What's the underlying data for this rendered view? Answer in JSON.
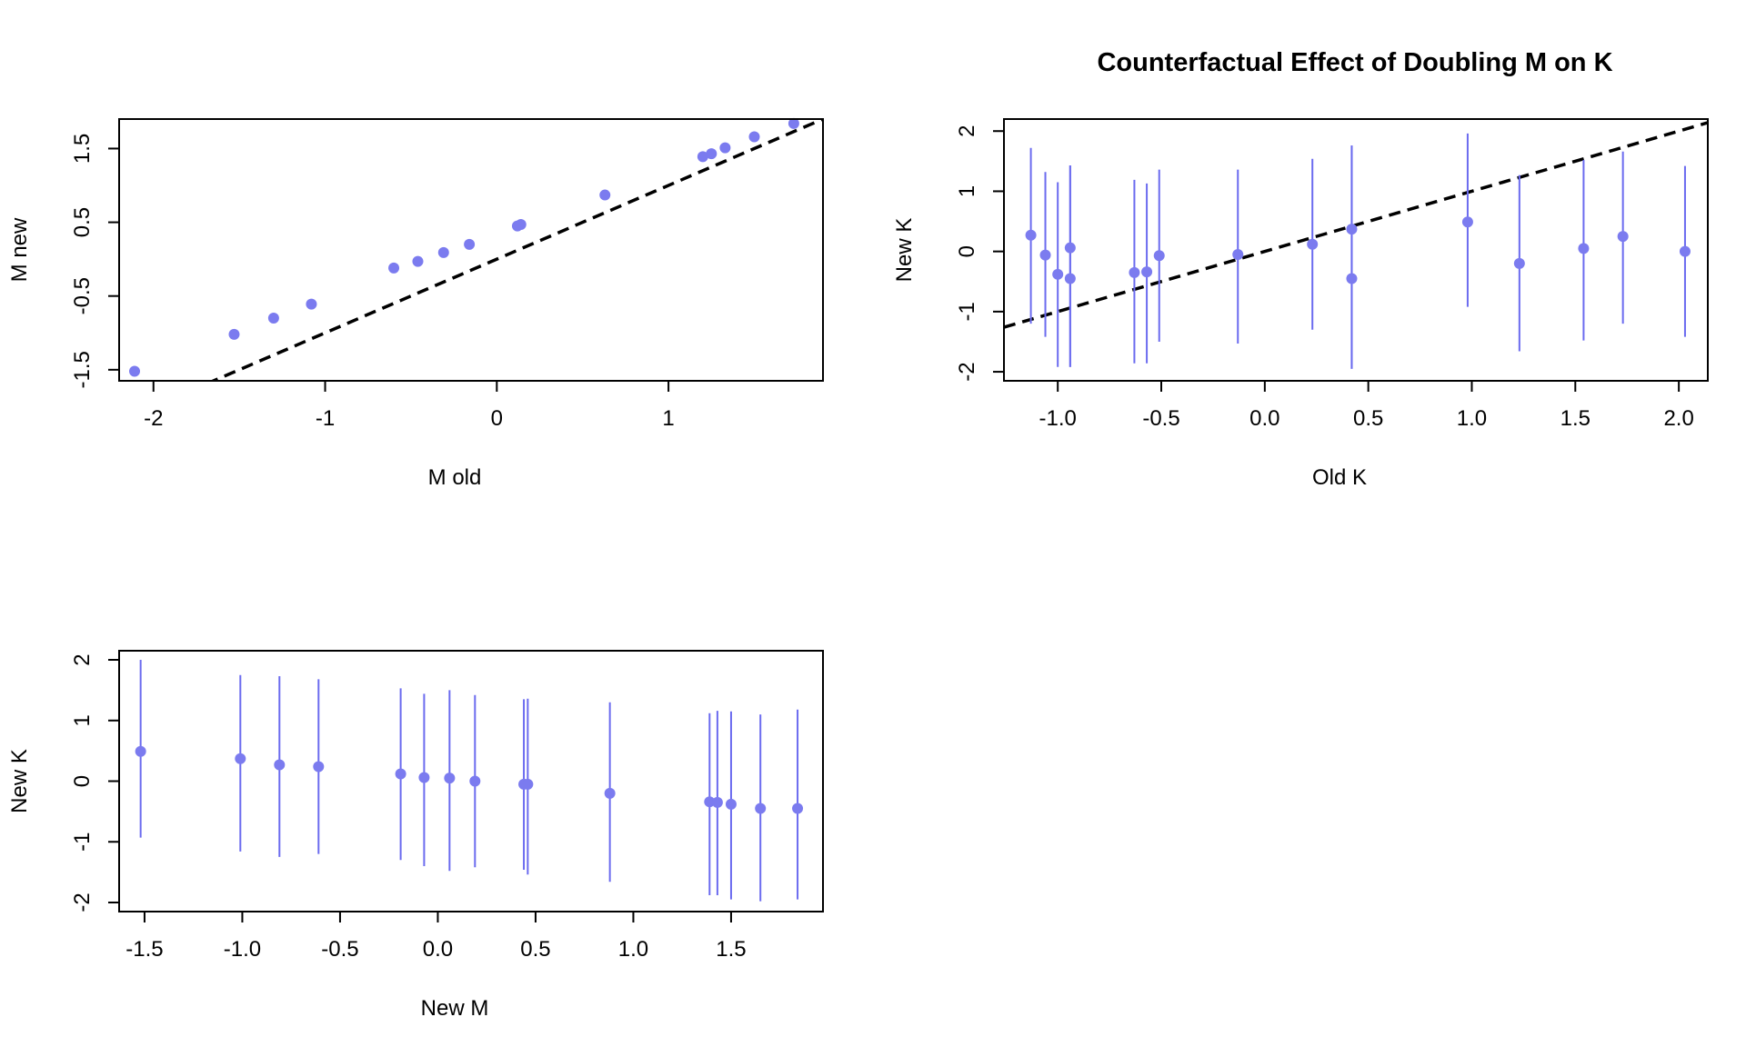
{
  "title": "Counterfactual Effect of Doubling M on K",
  "colors": {
    "points": "#7b7bef",
    "bars": "#6b6bef",
    "line": "#000000",
    "frame": "#000000"
  },
  "chart_data": [
    {
      "type": "scatter",
      "xlabel": "M old",
      "ylabel": "M new",
      "xlim": [
        -2.2,
        1.9
      ],
      "ylim": [
        -1.65,
        1.9
      ],
      "xticks": [
        -2,
        -1,
        0,
        1
      ],
      "xtick_labels": [
        "-2",
        "-1",
        "0",
        "1"
      ],
      "yticks": [
        -1.5,
        -0.5,
        0.5,
        1.5
      ],
      "ytick_labels": [
        "-1.5",
        "-0.5",
        "0.5",
        "1.5"
      ],
      "reference_line": {
        "style": "dashed",
        "intercept": 0,
        "slope": 1
      },
      "x": [
        -2.11,
        -1.53,
        -1.3,
        -1.08,
        -0.6,
        -0.46,
        -0.31,
        -0.16,
        0.12,
        0.14,
        0.63,
        1.2,
        1.25,
        1.33,
        1.5,
        1.73
      ],
      "y": [
        -1.52,
        -1.02,
        -0.8,
        -0.61,
        -0.12,
        -0.03,
        0.09,
        0.2,
        0.45,
        0.47,
        0.87,
        1.39,
        1.43,
        1.51,
        1.66,
        1.84
      ]
    },
    {
      "type": "scatter",
      "title": "Counterfactual Effect of Doubling M on K",
      "xlabel": "Old K",
      "ylabel": "New K",
      "xlim": [
        -1.26,
        2.14
      ],
      "ylim": [
        -2.15,
        2.2
      ],
      "xticks": [
        -1.0,
        -0.5,
        0.0,
        0.5,
        1.0,
        1.5,
        2.0
      ],
      "xtick_labels": [
        "-1.0",
        "-0.5",
        "0.0",
        "0.5",
        "1.0",
        "1.5",
        "2.0"
      ],
      "yticks": [
        -2,
        -1,
        0,
        1,
        2
      ],
      "ytick_labels": [
        "-2",
        "-1",
        "0",
        "1",
        "2"
      ],
      "reference_line": {
        "style": "dashed",
        "intercept": 0,
        "slope": 1
      },
      "x": [
        -1.13,
        -1.06,
        -1.0,
        -0.94,
        -0.94,
        -0.63,
        -0.57,
        -0.51,
        -0.13,
        0.23,
        0.42,
        0.42,
        0.98,
        1.23,
        1.54,
        1.73,
        2.03
      ],
      "y": [
        0.27,
        -0.06,
        -0.38,
        0.06,
        -0.45,
        -0.35,
        -0.34,
        -0.07,
        -0.05,
        0.12,
        0.37,
        -0.45,
        0.49,
        -0.2,
        0.05,
        0.25,
        0.0
      ],
      "lower": [
        -1.2,
        -1.42,
        -1.92,
        -1.92,
        -1.92,
        -1.86,
        -1.86,
        -1.5,
        -1.53,
        -1.3,
        -1.95,
        -1.95,
        -0.92,
        -1.66,
        -1.48,
        -1.2,
        -1.42
      ],
      "upper": [
        1.72,
        1.32,
        1.15,
        1.43,
        1.43,
        1.19,
        1.13,
        1.36,
        1.36,
        1.54,
        1.76,
        1.76,
        1.96,
        1.27,
        1.52,
        1.66,
        1.42
      ]
    },
    {
      "type": "scatter",
      "xlabel": "New M",
      "ylabel": "New K",
      "xlim": [
        -1.63,
        1.97
      ],
      "ylim": [
        -2.15,
        2.15
      ],
      "xticks": [
        -1.5,
        -1.0,
        -0.5,
        0.0,
        0.5,
        1.0,
        1.5
      ],
      "xtick_labels": [
        "-1.5",
        "-1.0",
        "-0.5",
        "0.0",
        "0.5",
        "1.0",
        "1.5"
      ],
      "yticks": [
        -2,
        -1,
        0,
        1,
        2
      ],
      "ytick_labels": [
        "-2",
        "-1",
        "0",
        "1",
        "2"
      ],
      "x": [
        -1.52,
        -1.01,
        -0.81,
        -0.61,
        -0.19,
        -0.07,
        0.06,
        0.19,
        0.44,
        0.46,
        0.88,
        1.39,
        1.43,
        1.5,
        1.65,
        1.84
      ],
      "y": [
        0.49,
        0.37,
        0.27,
        0.24,
        0.12,
        0.06,
        0.05,
        0.0,
        -0.05,
        -0.05,
        -0.2,
        -0.34,
        -0.35,
        -0.38,
        -0.45,
        -0.45
      ],
      "lower": [
        -0.93,
        -1.16,
        -1.25,
        -1.2,
        -1.3,
        -1.4,
        -1.48,
        -1.42,
        -1.46,
        -1.54,
        -1.66,
        -1.88,
        -1.88,
        -1.95,
        -1.98,
        -1.95
      ],
      "upper": [
        2.0,
        1.75,
        1.73,
        1.68,
        1.53,
        1.44,
        1.5,
        1.42,
        1.35,
        1.36,
        1.3,
        1.12,
        1.16,
        1.15,
        1.1,
        1.18
      ]
    }
  ]
}
